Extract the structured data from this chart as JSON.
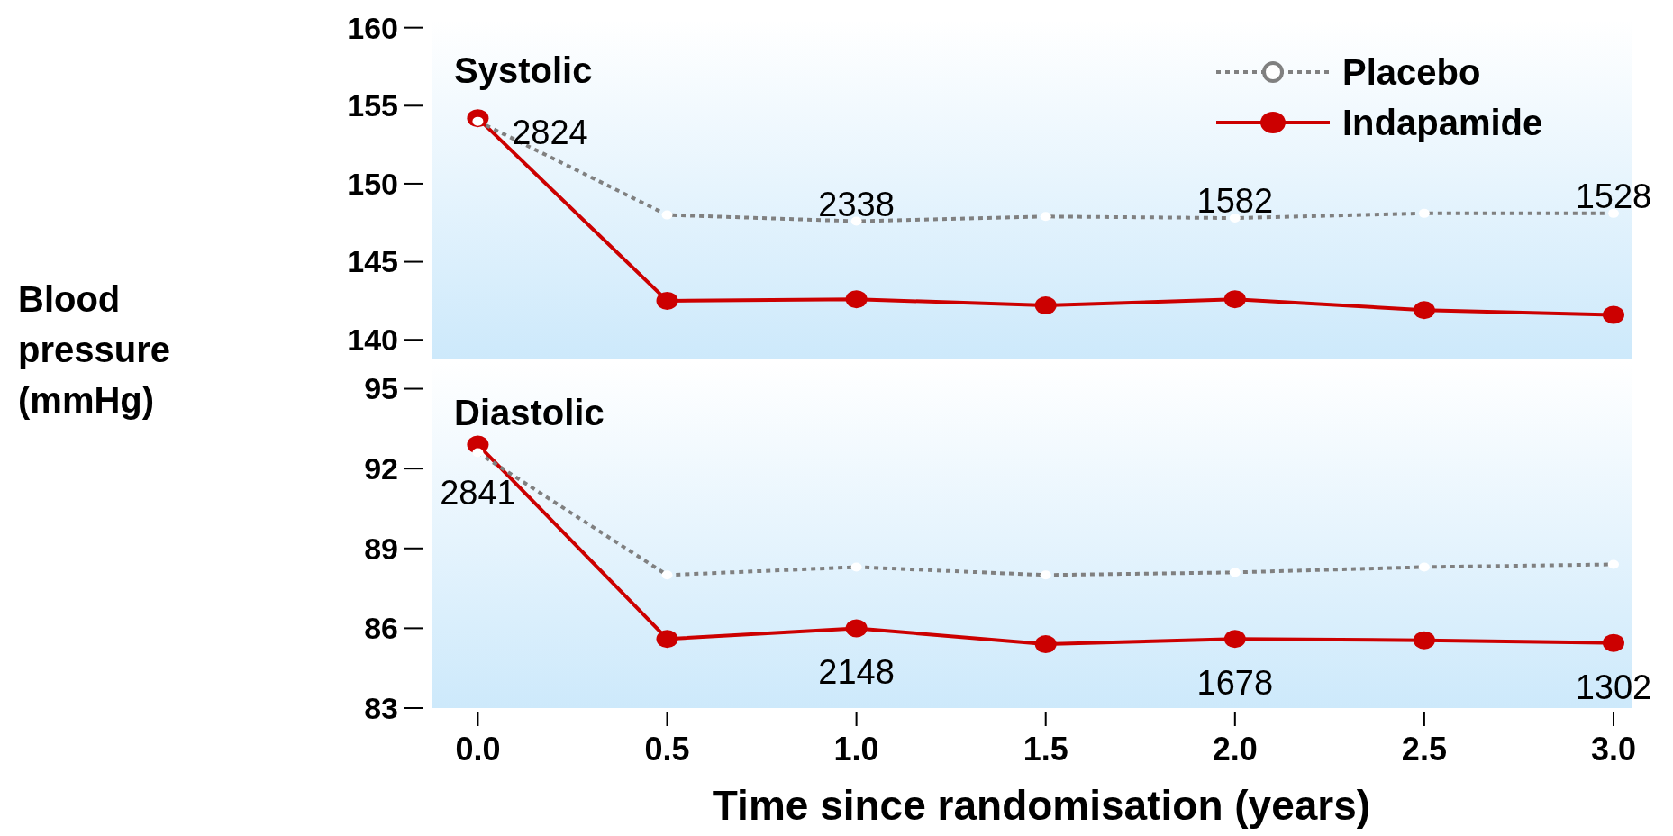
{
  "chart_data": [
    {
      "type": "line",
      "title": "Systolic",
      "ylabel": "Blood pressure (mmHg)",
      "x": [
        0,
        0.5,
        1,
        1.5,
        2,
        2.5,
        3
      ],
      "xlim": [
        -0.12,
        3.05
      ],
      "ylim": [
        138.8,
        160.5
      ],
      "yticks": [
        140,
        145,
        150,
        155,
        160
      ],
      "tick_labels": "y",
      "grid": false,
      "legend": "top right",
      "series": [
        {
          "name": "Placebo",
          "color": "#808080",
          "line_style": "dotted",
          "marker": "circle",
          "values": [
            154,
            148.0,
            147.6,
            147.9,
            147.8,
            148.1,
            148.1
          ]
        },
        {
          "name": "Indapamide",
          "color": "#cc0000",
          "line_style": "solid",
          "marker": "circle",
          "values": [
            154.2,
            142.5,
            142.6,
            142.2,
            142.6,
            141.9,
            141.6
          ]
        }
      ],
      "annotations": [
        {
          "text": "2824",
          "x": 0,
          "y": 153.9
        },
        {
          "text": "2338",
          "x": 1,
          "y": 147.6
        },
        {
          "text": "1582",
          "x": 2,
          "y": 147.8
        },
        {
          "text": "1528",
          "x": 3,
          "y": 148.1
        }
      ]
    },
    {
      "type": "line",
      "title": "Diastolic",
      "xlabel": "Time since randomisation (years)",
      "x": [
        0,
        0.5,
        1,
        1.5,
        2,
        2.5,
        3
      ],
      "xlim": [
        -0.12,
        3.05
      ],
      "ylim": [
        83,
        96
      ],
      "yticks": [
        83,
        86,
        89,
        92,
        95
      ],
      "xticks": [
        {
          "value": 0,
          "label": "0.0"
        },
        {
          "value": 0.5,
          "label": "0.5"
        },
        {
          "value": 1,
          "label": "1.0"
        },
        {
          "value": 1.5,
          "label": "1.5"
        },
        {
          "value": 2,
          "label": "2.0"
        },
        {
          "value": 2.5,
          "label": "2.5"
        },
        {
          "value": 3,
          "label": "3.0"
        }
      ],
      "grid": false,
      "legend": false,
      "series": [
        {
          "color": "#808080",
          "line_style": "dotted",
          "marker": "circle",
          "values": [
            92.6,
            88.0,
            88.3,
            88.0,
            88.1,
            88.3,
            88.4
          ]
        },
        {
          "color": "#cc0000",
          "line_style": "solid",
          "marker": "circle",
          "values": [
            92.9,
            85.6,
            86.0,
            85.4,
            85.6,
            85.55,
            85.45
          ]
        }
      ],
      "annotations": [
        {
          "text": "2841",
          "x": 0,
          "y": 92.6
        },
        {
          "text": "2148",
          "x": 1,
          "y": 86.0
        },
        {
          "text": "1678",
          "x": 2,
          "y": 85.6
        },
        {
          "text": "1302",
          "x": 3,
          "y": 85.45
        }
      ]
    }
  ]
}
